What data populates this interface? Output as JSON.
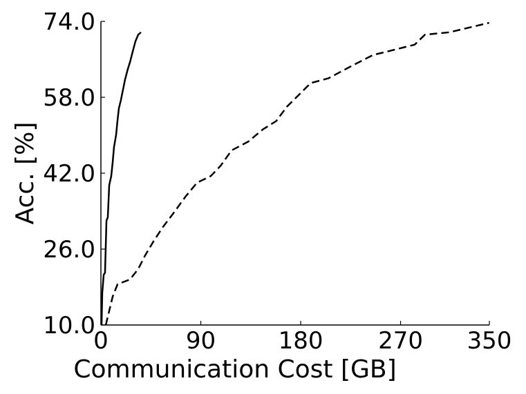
{
  "chart_data": {
    "type": "line",
    "xlabel": "Communication Cost [GB]",
    "ylabel": "Acc. [%]",
    "xlim": [
      0,
      350
    ],
    "xticks": [
      0,
      90,
      180,
      270,
      350
    ],
    "ylim": [
      10,
      74
    ],
    "yticks": [
      {
        "value": 10,
        "label": "10.0"
      },
      {
        "value": 26,
        "label": "26.0"
      },
      {
        "value": 42,
        "label": "42.0"
      },
      {
        "value": 58,
        "label": "58.0"
      },
      {
        "value": 74,
        "label": "74.0"
      }
    ],
    "series": [
      {
        "color": "#000000",
        "dash": "solid",
        "x": [
          0.6,
          1.2,
          2.5,
          3.7,
          5,
          6.2,
          7.5,
          9.3,
          10.6,
          11.8,
          13.7,
          14.9,
          16.2,
          18,
          19.9,
          21.8,
          24.3,
          26.2,
          28.6,
          31.1,
          33.6,
          36.1
        ],
        "values": [
          10,
          16.7,
          20.6,
          21,
          32,
          32.7,
          39.5,
          41.4,
          44.3,
          47.5,
          50.1,
          53,
          55.7,
          57.4,
          59.6,
          61.8,
          64,
          65.4,
          67.6,
          69.8,
          71.2,
          71.7
        ]
      },
      {
        "color": "#000000",
        "dash": "dashed",
        "x": [
          4.4,
          7.5,
          10.6,
          15,
          26.2,
          33.6,
          39.9,
          47.3,
          55.4,
          64.8,
          76,
          86.6,
          99,
          108,
          117.7,
          133,
          145.7,
          158,
          167.5,
          180,
          189,
          205,
          226.6,
          245,
          264,
          282.7,
          292,
          313.8,
          349.8
        ],
        "values": [
          10,
          13,
          16,
          18.6,
          19.6,
          21.8,
          24.7,
          27.6,
          30.5,
          33.4,
          37,
          40,
          41.4,
          43.6,
          46.8,
          48.7,
          51.2,
          53,
          56,
          58.9,
          61,
          62,
          64.7,
          66.9,
          68,
          69.1,
          71.2,
          71.7,
          73.7
        ]
      }
    ]
  }
}
